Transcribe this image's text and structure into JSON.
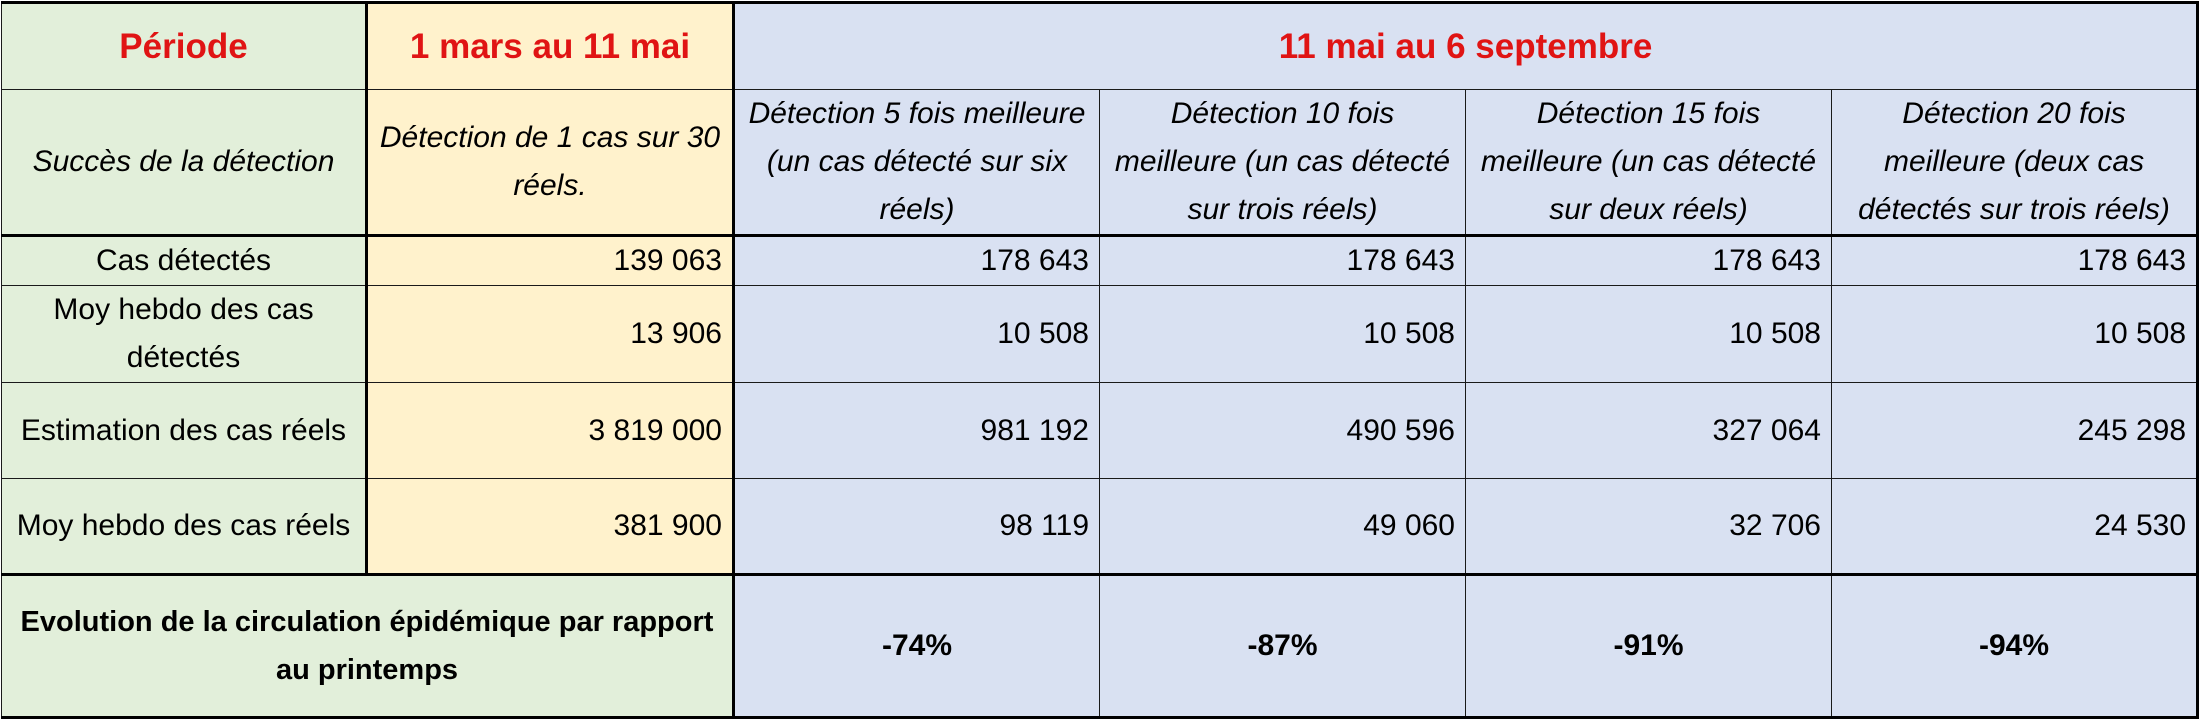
{
  "header": {
    "periode": "Période",
    "period1": "1 mars au 11 mai",
    "period2": "11 mai au 6 septembre"
  },
  "detection_row": {
    "label": "Succès de la détection",
    "p1": "Détection de 1 cas sur 30 réels.",
    "scenarios": [
      "Détection 5 fois meilleure (un cas détecté sur six réels)",
      "Détection 10 fois meilleure (un cas détecté sur trois réels)",
      "Détection 15 fois meilleure (un cas détecté sur deux réels)",
      "Détection 20 fois meilleure (deux cas détectés sur trois réels)"
    ]
  },
  "rows": [
    {
      "label": "Cas détectés",
      "p1": "139 063",
      "values": [
        "178 643",
        "178 643",
        "178 643",
        "178 643"
      ]
    },
    {
      "label": "Moy hebdo des cas détectés",
      "p1": "13 906",
      "values": [
        "10 508",
        "10 508",
        "10 508",
        "10 508"
      ]
    },
    {
      "label": "Estimation des cas réels",
      "p1": "3 819 000",
      "values": [
        "981 192",
        "490 596",
        "327 064",
        "245 298"
      ]
    },
    {
      "label": "Moy hebdo des cas réels",
      "p1": "381 900",
      "values": [
        "98 119",
        "49 060",
        "32 706",
        "24 530"
      ]
    }
  ],
  "evolution": {
    "label": "Evolution de la circulation épidémique par rapport au printemps",
    "values": [
      "-74%",
      "-87%",
      "-91%",
      "-94%"
    ]
  },
  "colors": {
    "label_bg": "#e2efda",
    "period1_bg": "#fff2cc",
    "period2_bg": "#d9e1f2",
    "header_text": "#e01414"
  }
}
